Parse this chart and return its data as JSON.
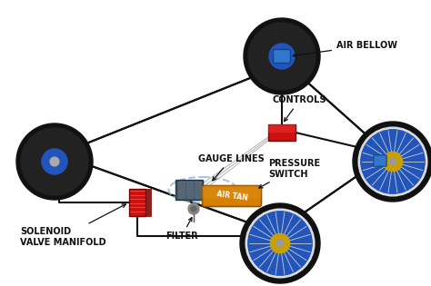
{
  "bg_color": "#ffffff",
  "labels": {
    "air_bellow": "AIR BELLOW",
    "controls": "CONTROLS",
    "gauge_lines": "GAUGE LINES",
    "pressure_switch": "PRESSURE\nSWITCH",
    "solenoid": "SOLENOID\nVALVE MANIFOLD",
    "filter": "FILTER",
    "air_tank": "AIR TAN"
  },
  "label_color": "#111111",
  "label_fontsize": 7.0,
  "wheel_dark": "#111111",
  "wheel_rim_blue": "#2255bb",
  "wheel_rim_gold": "#c8a000",
  "wheel_hub_gray": "#888888",
  "air_bellow_color": "#3377cc",
  "controls_color": "#cc1111",
  "air_tank_color": "#d48000",
  "solenoid_color": "#cc1111",
  "compressor_color": "#445566",
  "filter_color": "#888888",
  "line_color": "#111111",
  "gauge_ellipse_color": "#99bbdd",
  "chassis_color": "#dddddd",
  "chassis_edge": "#aaaaaa"
}
